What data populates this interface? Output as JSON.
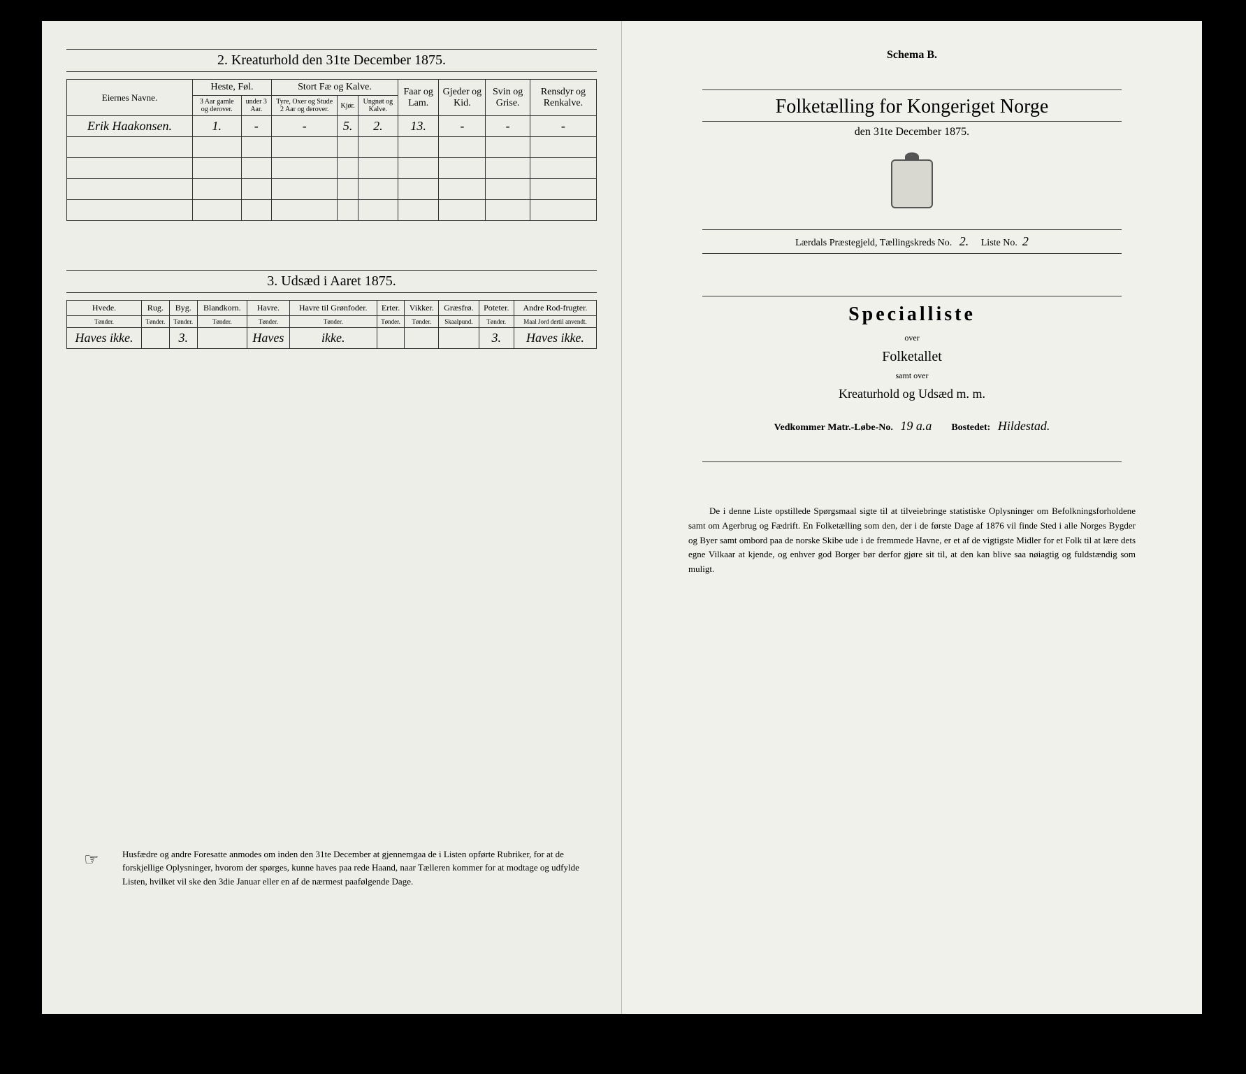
{
  "left": {
    "section2": {
      "title": "2.  Kreaturhold den 31te December 1875.",
      "columns": {
        "owner": "Eiernes Navne.",
        "group1": "Heste, Føl.",
        "group1_sub": [
          "3 Aar gamle og derover.",
          "under 3 Aar."
        ],
        "group2": "Stort Fæ og Kalve.",
        "group2_sub": [
          "Tyre, Oxer og Stude 2 Aar og derover.",
          "Kjør.",
          "Ungnøt og Kalve."
        ],
        "col_faar": "Faar og Lam.",
        "col_gjeder": "Gjeder og Kid.",
        "col_svin": "Svin og Grise.",
        "col_ren": "Rensdyr og Renkalve."
      },
      "row": {
        "owner": "Erik Haakonsen.",
        "heste_3plus": "1.",
        "heste_u3": "-",
        "tyre": "-",
        "kjor": "5.",
        "ungnot": "2.",
        "faar": "13.",
        "gjeder": "-",
        "svin": "-",
        "ren": "-"
      }
    },
    "section3": {
      "title": "3.  Udsæd i Aaret 1875.",
      "columns": [
        "Hvede.",
        "Rug.",
        "Byg.",
        "Blandkorn.",
        "Havre.",
        "Havre til Grønfoder.",
        "Erter.",
        "Vikker.",
        "Græsfrø.",
        "Poteter.",
        "Andre Rod-frugter."
      ],
      "units": [
        "Tønder.",
        "Tønder.",
        "Tønder.",
        "Tønder.",
        "Tønder.",
        "Tønder.",
        "Tønder.",
        "Tønder.",
        "Skaalpund.",
        "Tønder.",
        "Maal Jord dertil anvendt."
      ],
      "row": [
        "Haves ikke.",
        "",
        "3.",
        "",
        "Haves",
        "ikke.",
        "",
        "",
        "",
        "3.",
        "Haves ikke."
      ]
    },
    "note": "Husfædre og andre Foresatte anmodes om inden den 31te December at gjennemgaa de i Listen opførte Rubriker, for at de forskjellige Oplysninger, hvorom der spørges, kunne haves paa rede Haand, naar Tælleren kommer for at modtage og udfylde Listen, hvilket vil ske den 3die Januar eller en af de nærmest paafølgende Dage."
  },
  "right": {
    "schema": "Schema B.",
    "main_title": "Folketælling for Kongeriget Norge",
    "sub_title": "den 31te December 1875.",
    "district_prefix": "Lærdals Præstegjeld,  Tællingskreds No.",
    "district_no": "2.",
    "liste_label": "Liste No.",
    "liste_no": "2",
    "spec_title": "Specialliste",
    "over": "over",
    "folketallet": "Folketallet",
    "samt": "samt over",
    "kreatur": "Kreaturhold og Udsæd m. m.",
    "matr_label": "Vedkommer Matr.-Løbe-No.",
    "matr_no": "19 a.a",
    "bosted_label": "Bostedet:",
    "bosted": "Hildestad.",
    "note": "De i denne Liste opstillede Spørgsmaal sigte til at tilveiebringe statistiske Oplysninger om Befolkningsforholdene samt om Agerbrug og Fædrift.  En Folketælling som den, der i de første Dage af 1876 vil finde Sted i alle Norges Bygder og Byer samt ombord paa de norske Skibe ude i de fremmede Havne, er et af de vigtigste Midler for et Folk til at lære dets egne Vilkaar at kjende, og enhver god Borger bør derfor gjøre sit til, at den kan blive saa nøiagtig og fuldstændig som muligt."
  },
  "colors": {
    "bg": "#000000",
    "paper": "#edeee8",
    "ink": "#2b2b2b"
  }
}
